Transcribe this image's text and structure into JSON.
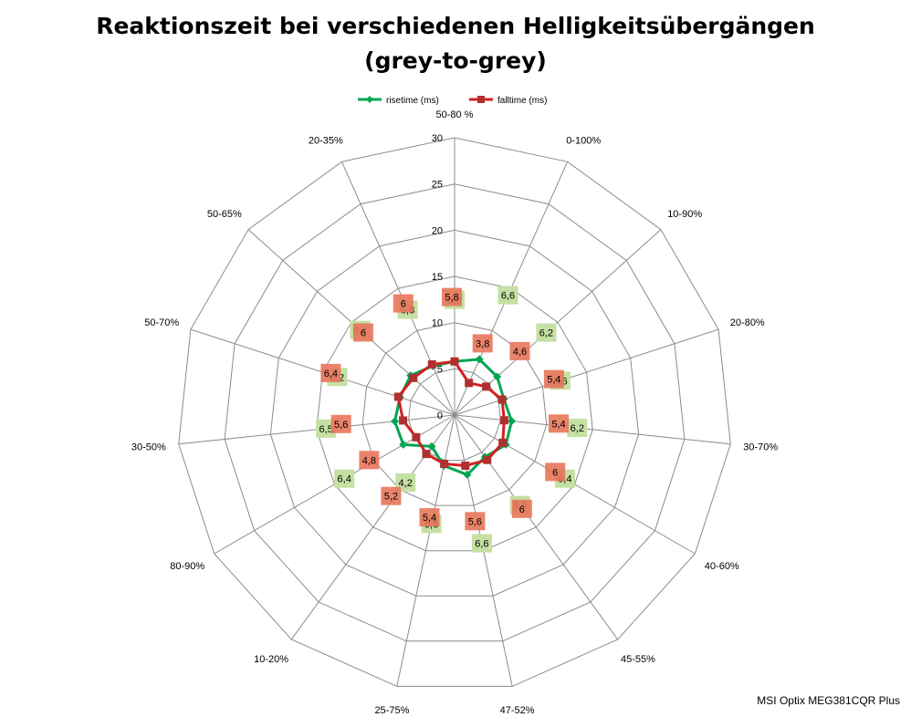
{
  "chart_data": {
    "type": "radar",
    "title": "Reaktionszeit bei verschiedenen Helligkeitsübergängen",
    "subtitle": "(grey-to-grey)",
    "categories": [
      "50-80 %",
      "0-100%",
      "10-90%",
      "20-80%",
      "30-70%",
      "40-60%",
      "45-55%",
      "47-52%",
      "25-75%",
      "10-20%",
      "80-90%",
      "30-50%",
      "50-70%",
      "50-65%",
      "20-35%"
    ],
    "r_ticks": [
      "0",
      "5",
      "10",
      "15",
      "20",
      "25",
      "30"
    ],
    "r_range": [
      0,
      30
    ],
    "grid": true,
    "legend_position": "top",
    "series": [
      {
        "name": "risetime (ms)",
        "color": "#00a550",
        "label_color": "#c4e0a3",
        "values": [
          5.8,
          6.6,
          6.2,
          5.6,
          6.2,
          6.4,
          5.6,
          6.6,
          5.6,
          4.2,
          6.4,
          6.5,
          6.2,
          6.4,
          5.8
        ]
      },
      {
        "name": "falltime (ms)",
        "color": "#d42020",
        "label_color": "#f07070",
        "values": [
          5.8,
          3.8,
          4.6,
          5.4,
          5.4,
          6.0,
          6.0,
          5.6,
          5.4,
          5.2,
          4.8,
          5.6,
          6.4,
          6.0,
          6.0
        ]
      }
    ]
  },
  "watermark": "MSI Optix MEG381CQR Plus"
}
